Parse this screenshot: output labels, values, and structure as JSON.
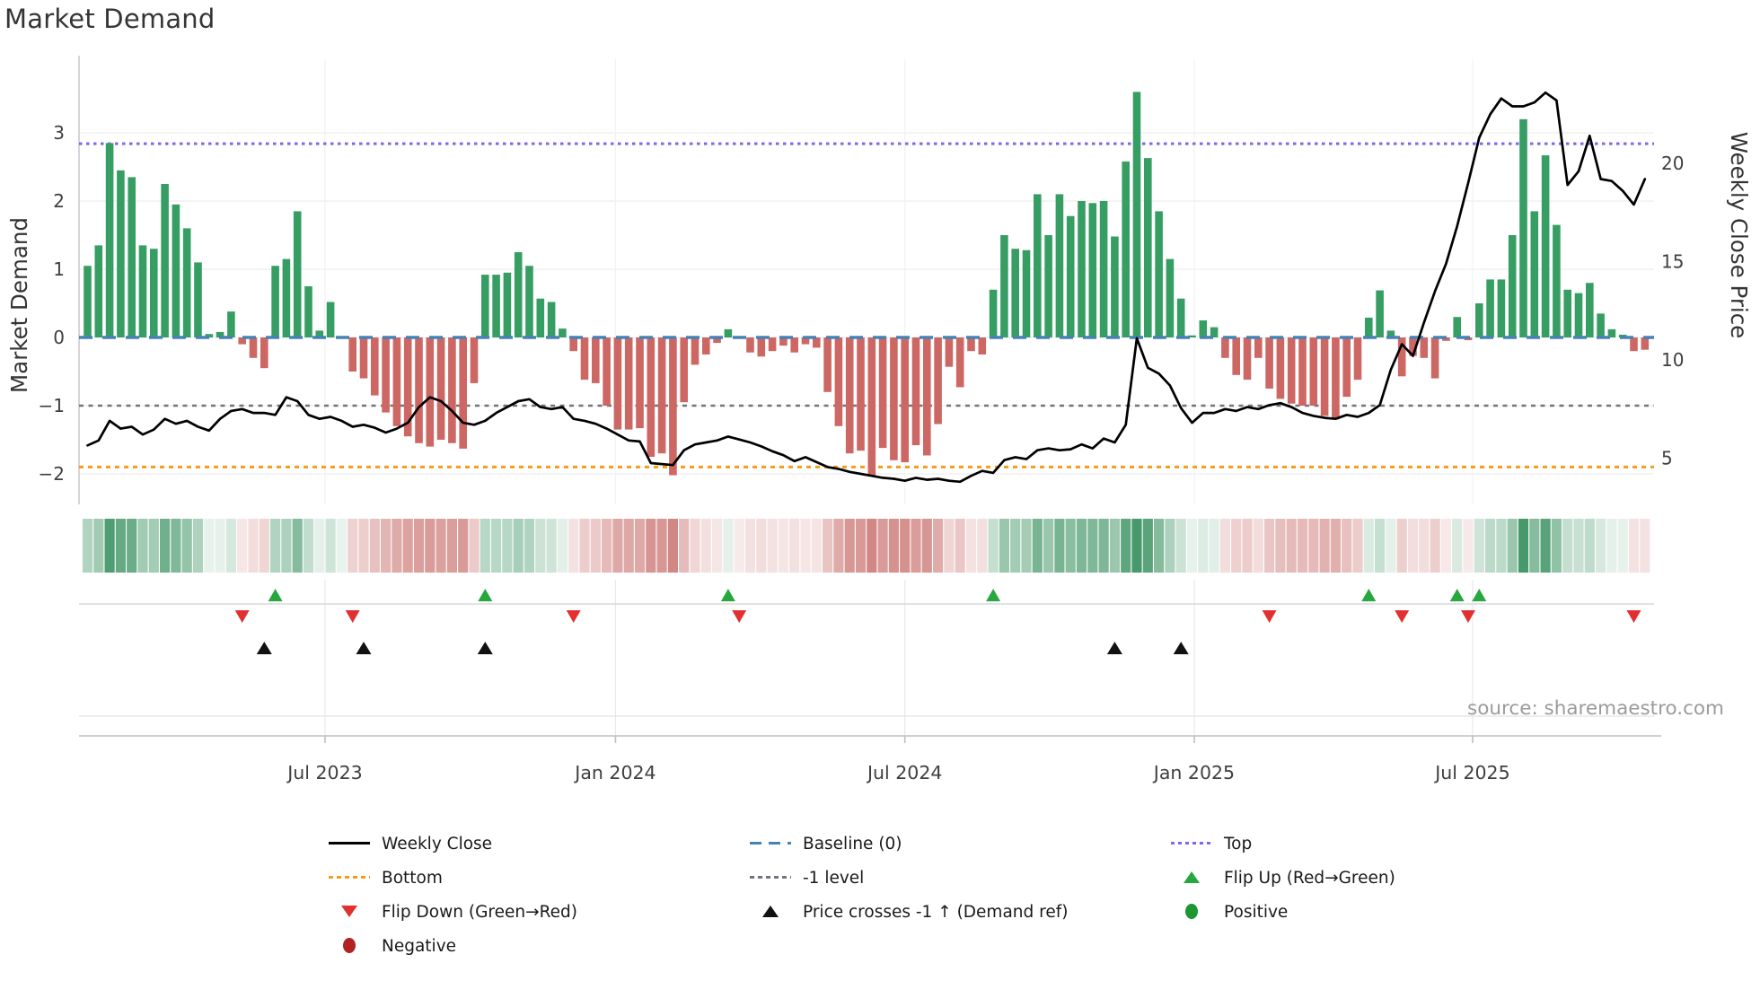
{
  "title": "Market Demand",
  "source": "source: sharemaestro.com",
  "axes": {
    "left_label": "Market Demand",
    "right_label": "Weekly Close Price",
    "left_ticks": [
      {
        "label": "3",
        "value": 3
      },
      {
        "label": "2",
        "value": 2
      },
      {
        "label": "1",
        "value": 1
      },
      {
        "label": "0",
        "value": 0
      },
      {
        "label": "−1",
        "value": -1
      },
      {
        "label": "−2",
        "value": -2
      }
    ],
    "right_ticks": [
      {
        "label": "20",
        "value": 20
      },
      {
        "label": "15",
        "value": 15
      },
      {
        "label": "10",
        "value": 10
      },
      {
        "label": "5",
        "value": 5
      }
    ],
    "x_ticks": [
      {
        "label": "Jul 2023",
        "week": 21.5
      },
      {
        "label": "Jan 2024",
        "week": 47.8
      },
      {
        "label": "Jul 2024",
        "week": 74.0
      },
      {
        "label": "Jan 2025",
        "week": 100.2
      },
      {
        "label": "Jul 2025",
        "week": 125.4
      }
    ]
  },
  "chart_data": {
    "type": "bar+line",
    "x_unit": "week",
    "n_points": 142,
    "title": "Market Demand",
    "ylabel_left": "Market Demand",
    "ylabel_right": "Weekly Close Price",
    "ylim_left": [
      -2.5,
      4.0
    ],
    "ylim_right": [
      1.5,
      25.0
    ],
    "grid": true,
    "has_heatmap_strip": true,
    "series": [
      {
        "name": "Market Demand",
        "type": "bar",
        "axis": "left",
        "values": [
          1.05,
          1.35,
          2.85,
          2.45,
          2.35,
          1.35,
          1.3,
          2.25,
          1.95,
          1.6,
          1.1,
          0.05,
          0.08,
          0.38,
          -0.1,
          -0.3,
          -0.45,
          1.05,
          1.15,
          1.85,
          0.75,
          0.1,
          0.52,
          0.02,
          -0.5,
          -0.6,
          -0.85,
          -1.1,
          -1.3,
          -1.45,
          -1.55,
          -1.6,
          -1.5,
          -1.55,
          -1.63,
          -0.67,
          0.92,
          0.92,
          0.95,
          1.25,
          1.05,
          0.57,
          0.52,
          0.13,
          -0.2,
          -0.62,
          -0.67,
          -1.0,
          -1.35,
          -1.35,
          -1.33,
          -1.75,
          -1.7,
          -2.02,
          -0.95,
          -0.4,
          -0.25,
          -0.08,
          0.12,
          -0.02,
          -0.22,
          -0.28,
          -0.2,
          -0.12,
          -0.22,
          -0.1,
          -0.15,
          -0.8,
          -1.3,
          -1.7,
          -1.66,
          -2.03,
          -1.62,
          -1.8,
          -1.83,
          -1.58,
          -1.73,
          -1.27,
          -0.43,
          -0.73,
          -0.2,
          -0.25,
          0.7,
          1.5,
          1.3,
          1.28,
          2.1,
          1.5,
          2.1,
          1.78,
          2.0,
          1.97,
          2.0,
          1.48,
          2.58,
          3.6,
          2.63,
          1.85,
          1.15,
          0.57,
          0.03,
          0.25,
          0.15,
          -0.3,
          -0.55,
          -0.62,
          -0.3,
          -0.75,
          -0.9,
          -0.97,
          -1.0,
          -1.0,
          -1.15,
          -1.2,
          -0.87,
          -0.62,
          0.29,
          0.69,
          0.1,
          -0.57,
          -0.27,
          -0.3,
          -0.6,
          -0.05,
          0.3,
          -0.04,
          0.5,
          0.85,
          0.85,
          1.5,
          3.2,
          1.85,
          2.67,
          1.65,
          0.7,
          0.65,
          0.8,
          0.35,
          0.12,
          0.04,
          -0.2,
          -0.18
        ]
      },
      {
        "name": "Weekly Close",
        "type": "line",
        "axis": "right",
        "values": [
          5.65,
          5.9,
          6.9,
          6.5,
          6.6,
          6.2,
          6.45,
          7.0,
          6.75,
          6.9,
          6.6,
          6.4,
          7.0,
          7.4,
          7.5,
          7.3,
          7.3,
          7.2,
          8.1,
          7.9,
          7.2,
          7.0,
          7.1,
          6.9,
          6.6,
          6.7,
          6.55,
          6.3,
          6.5,
          6.8,
          7.6,
          8.1,
          7.9,
          7.4,
          6.8,
          6.7,
          6.9,
          7.3,
          7.6,
          7.9,
          8.0,
          7.6,
          7.5,
          7.6,
          7.0,
          6.9,
          6.75,
          6.5,
          6.2,
          5.9,
          5.85,
          4.75,
          4.7,
          4.65,
          5.4,
          5.7,
          5.8,
          5.9,
          6.1,
          5.95,
          5.8,
          5.6,
          5.35,
          5.15,
          4.85,
          5.05,
          4.8,
          4.55,
          4.45,
          4.3,
          4.2,
          4.1,
          4.0,
          3.95,
          3.85,
          4.0,
          3.9,
          3.95,
          3.85,
          3.8,
          4.1,
          4.35,
          4.25,
          4.9,
          5.05,
          4.95,
          5.4,
          5.5,
          5.4,
          5.45,
          5.7,
          5.5,
          6.0,
          5.8,
          6.7,
          11.1,
          9.6,
          9.3,
          8.7,
          7.55,
          6.8,
          7.3,
          7.3,
          7.5,
          7.4,
          7.6,
          7.5,
          7.7,
          7.8,
          7.6,
          7.3,
          7.15,
          7.05,
          7.0,
          7.2,
          7.1,
          7.3,
          7.7,
          9.5,
          10.8,
          10.2,
          11.9,
          13.5,
          14.9,
          16.8,
          19.0,
          21.3,
          22.5,
          23.3,
          22.9,
          22.9,
          23.1,
          23.6,
          23.2,
          18.9,
          19.6,
          21.4,
          19.2,
          19.1,
          18.6,
          17.9,
          19.2
        ]
      }
    ],
    "reference_lines": [
      {
        "name": "Top",
        "axis": "left",
        "value": 2.84,
        "style": "dotted",
        "color_key": "top_line"
      },
      {
        "name": "Baseline (0)",
        "axis": "left",
        "value": 0,
        "style": "dashed",
        "color_key": "baseline"
      },
      {
        "name": "-1 level",
        "axis": "left",
        "value": -1,
        "style": "dashed",
        "color_key": "minus1_line"
      },
      {
        "name": "Bottom",
        "axis": "left",
        "value": -1.9,
        "style": "dotted",
        "color_key": "bottom_line"
      }
    ],
    "markers": {
      "flip_up_weeks": [
        17,
        36,
        58,
        82,
        116,
        124,
        126
      ],
      "flip_down_weeks": [
        14,
        24,
        44,
        59,
        107,
        119,
        125,
        140
      ],
      "price_cross_weeks": [
        16,
        25,
        36,
        93,
        99
      ]
    }
  },
  "legend": {
    "columns": [
      {
        "items": [
          {
            "label": "Weekly Close",
            "symbol": "solid-line-black"
          },
          {
            "label": "Bottom",
            "symbol": "dotted-orange"
          },
          {
            "label": "Flip Down (Green→Red)",
            "symbol": "triangle-down-red"
          },
          {
            "label": "Negative",
            "symbol": "circle-firebrick"
          }
        ]
      },
      {
        "items": [
          {
            "label": "Baseline (0)",
            "symbol": "dashed-blue"
          },
          {
            "label": "-1 level",
            "symbol": "dashed-gray"
          },
          {
            "label": "Price crosses -1 ↑ (Demand ref)",
            "symbol": "triangle-up-black"
          }
        ]
      },
      {
        "items": [
          {
            "label": "Top",
            "symbol": "dotted-purple"
          },
          {
            "label": "Flip Up (Red→Green)",
            "symbol": "triangle-up-green"
          },
          {
            "label": "Positive",
            "symbol": "circle-green"
          }
        ]
      }
    ]
  },
  "colors": {
    "bar_positive": "#379e63",
    "bar_negative": "#cd6763",
    "price_line": "#000000",
    "baseline": "#4682b4",
    "top_line": "#7b68ee",
    "bottom_line": "#f59d16",
    "minus1_line": "#74747e",
    "flip_up": "#27a83e",
    "flip_down": "#e23030",
    "price_cross": "#111111",
    "positive_dot": "#1e9632",
    "negative_dot": "#b22222",
    "heatmap_green": "#2e8b57",
    "heatmap_red": "#c05a56",
    "grid": "#ededf1",
    "axis_text": "#3f3f3f",
    "title_text": "#353535",
    "source_text": "#9b9b9b"
  }
}
